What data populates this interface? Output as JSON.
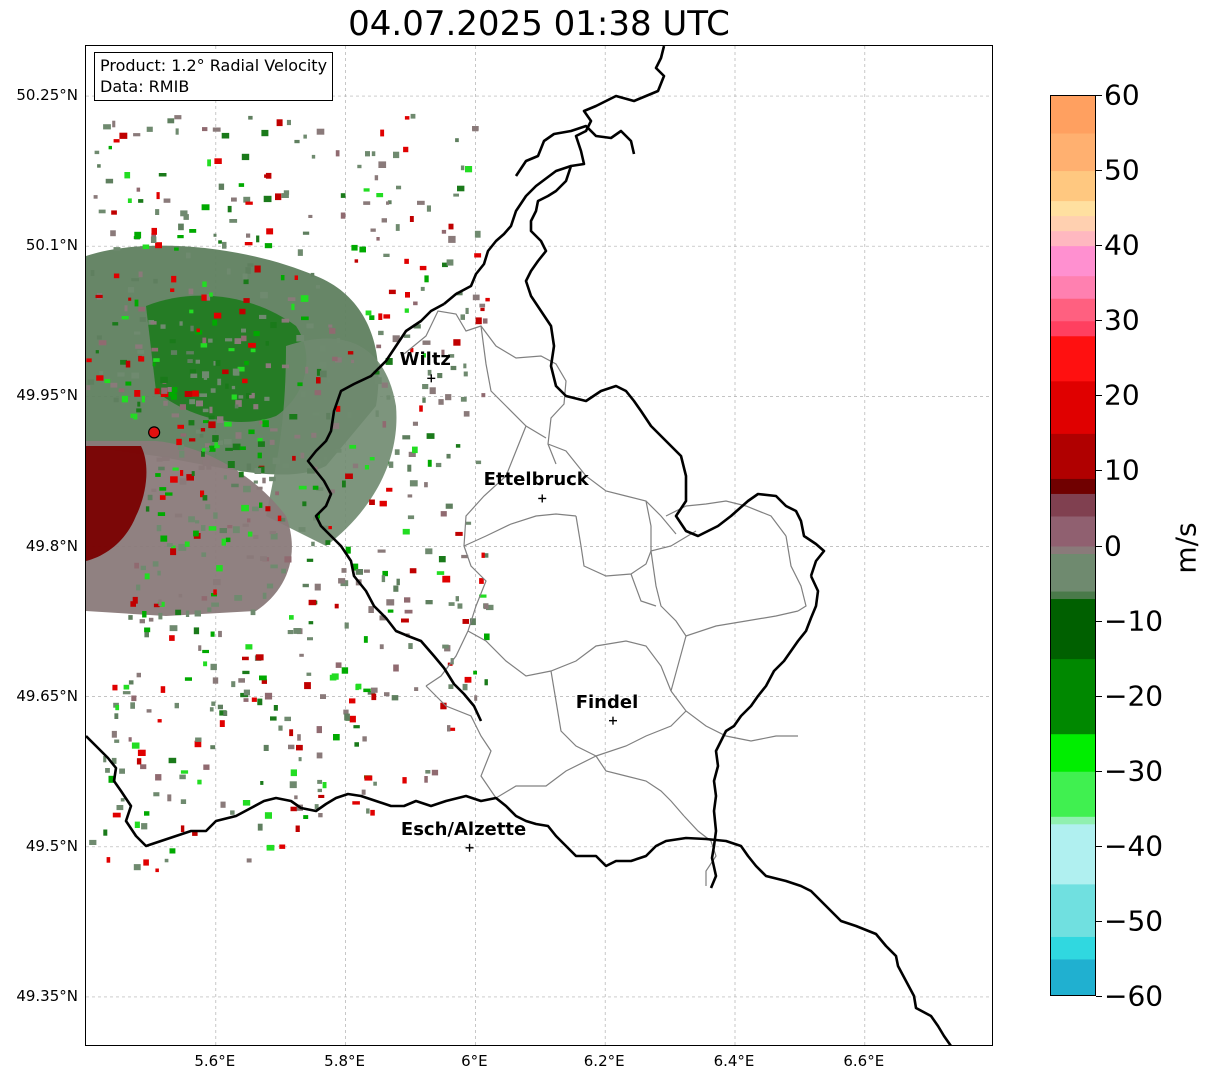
{
  "title": "04.07.2025 01:38 UTC",
  "info": {
    "product": "Product: 1.2° Radial Velocity",
    "data_source": "Data: RMIB"
  },
  "map": {
    "lon_range": [
      5.4,
      6.8
    ],
    "lat_range": [
      49.3,
      50.3
    ],
    "lat_ticks": [
      {
        "value": 50.25,
        "label": "50.25°N"
      },
      {
        "value": 50.1,
        "label": "50.1°N"
      },
      {
        "value": 49.95,
        "label": "49.95°N"
      },
      {
        "value": 49.8,
        "label": "49.8°N"
      },
      {
        "value": 49.65,
        "label": "49.65°N"
      },
      {
        "value": 49.5,
        "label": "49.5°N"
      },
      {
        "value": 49.35,
        "label": "49.35°N"
      }
    ],
    "lon_ticks": [
      {
        "value": 5.6,
        "label": "5.6°E"
      },
      {
        "value": 5.8,
        "label": "5.8°E"
      },
      {
        "value": 6.0,
        "label": "6°E"
      },
      {
        "value": 6.2,
        "label": "6.2°E"
      },
      {
        "value": 6.4,
        "label": "6.4°E"
      },
      {
        "value": 6.6,
        "label": "6.6°E"
      }
    ],
    "radar_site": {
      "lon": 5.505,
      "lat": 49.914,
      "color": "#e01010"
    },
    "cities": [
      {
        "name": "Wiltz",
        "lon": 5.932,
        "lat": 49.968
      },
      {
        "name": "Ettelbruck",
        "lon": 6.103,
        "lat": 49.848
      },
      {
        "name": "Findel",
        "lon": 6.212,
        "lat": 49.626
      },
      {
        "name": "Esch/Alzette",
        "lon": 5.991,
        "lat": 49.499
      }
    ],
    "colors": {
      "border": "#000000",
      "canton_lines": "#808080",
      "grid": "#b0b0b0"
    }
  },
  "colorbar": {
    "label": "m/s",
    "min": -60,
    "max": 60,
    "ticks": [
      {
        "value": 60,
        "label": "60"
      },
      {
        "value": 50,
        "label": "50"
      },
      {
        "value": 40,
        "label": "40"
      },
      {
        "value": 30,
        "label": "30"
      },
      {
        "value": 20,
        "label": "20"
      },
      {
        "value": 10,
        "label": "10"
      },
      {
        "value": 0,
        "label": "0"
      },
      {
        "value": -10,
        "label": "−10"
      },
      {
        "value": -20,
        "label": "−20"
      },
      {
        "value": -30,
        "label": "−30"
      },
      {
        "value": -40,
        "label": "−40"
      },
      {
        "value": -50,
        "label": "−50"
      },
      {
        "value": -60,
        "label": "−60"
      }
    ],
    "stops": [
      {
        "v": 60,
        "c": "#ffa060"
      },
      {
        "v": 55,
        "c": "#ffb070"
      },
      {
        "v": 50,
        "c": "#ffc880"
      },
      {
        "v": 46,
        "c": "#ffe0a0"
      },
      {
        "v": 44,
        "c": "#ffd0b0"
      },
      {
        "v": 42,
        "c": "#ffb8c0"
      },
      {
        "v": 40,
        "c": "#ff90d0"
      },
      {
        "v": 36,
        "c": "#ff80b0"
      },
      {
        "v": 33,
        "c": "#ff6080"
      },
      {
        "v": 30,
        "c": "#ff4060"
      },
      {
        "v": 28,
        "c": "#ff1010"
      },
      {
        "v": 22,
        "c": "#e00000"
      },
      {
        "v": 15,
        "c": "#b00000"
      },
      {
        "v": 9,
        "c": "#700000"
      },
      {
        "v": 7,
        "c": "#804050"
      },
      {
        "v": 4,
        "c": "#906070"
      },
      {
        "v": 0,
        "c": "#8a7a7a"
      },
      {
        "v": -1,
        "c": "#6f8a6f"
      },
      {
        "v": -6,
        "c": "#4a7a4a"
      },
      {
        "v": -7,
        "c": "#006000"
      },
      {
        "v": -15,
        "c": "#008800"
      },
      {
        "v": -25,
        "c": "#00ee00"
      },
      {
        "v": -30,
        "c": "#40f050"
      },
      {
        "v": -36,
        "c": "#90f0b0"
      },
      {
        "v": -37,
        "c": "#b0f0f0"
      },
      {
        "v": -45,
        "c": "#70e0e0"
      },
      {
        "v": -52,
        "c": "#30d8e0"
      },
      {
        "v": -55,
        "c": "#20b0d0"
      },
      {
        "v": -60,
        "c": "#2080c0"
      }
    ]
  }
}
